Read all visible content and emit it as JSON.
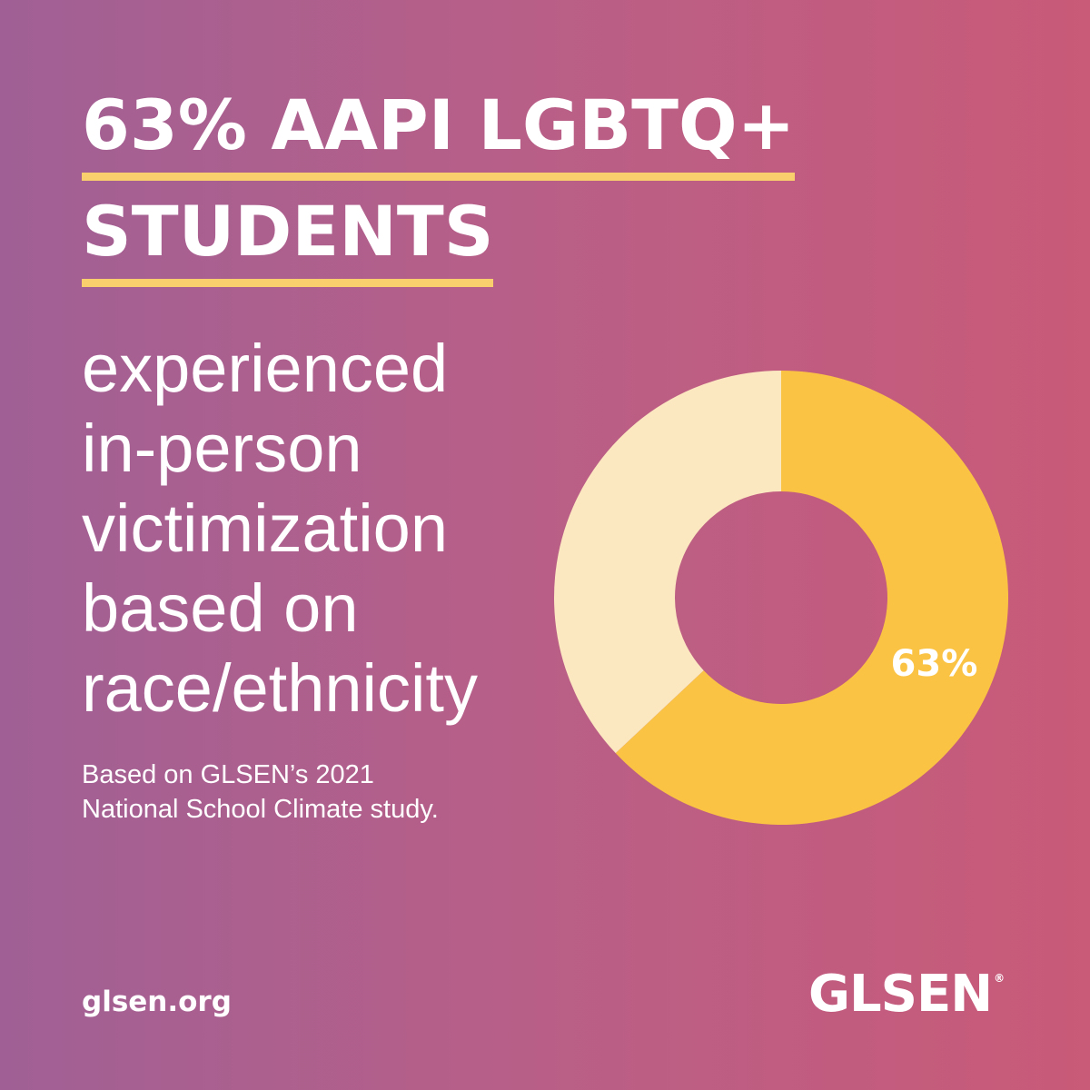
{
  "headline": {
    "line1": "63% AAPI LGBTQ+",
    "line2": "STUDENTS"
  },
  "statement_lines": [
    "experienced",
    "in-person",
    "victimization",
    "based on",
    "race/ethnicity"
  ],
  "source_lines": [
    "Based on GLSEN’s 2021",
    "National School Climate study."
  ],
  "footer": {
    "site": "glsen.org",
    "logo": "GLSEN",
    "registered_mark": "®"
  },
  "colors": {
    "accent": "#fbc344",
    "remainder": "#fbe7c0",
    "underline": "#f9cf6e",
    "text": "#ffffff"
  },
  "chart_data": {
    "type": "pie",
    "variant": "donut",
    "slices": [
      {
        "label": "63%",
        "value": 63,
        "color": "#fbc344"
      },
      {
        "value": 37,
        "color": "#fbe7c0"
      }
    ]
  }
}
